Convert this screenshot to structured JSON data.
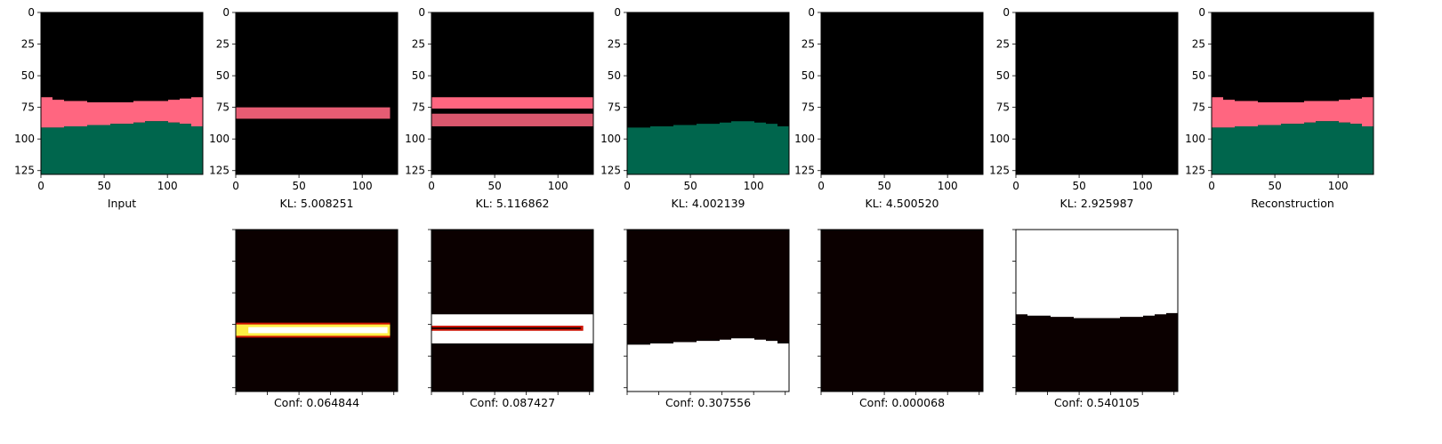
{
  "chart_data": {
    "type": "heatmap",
    "colors": {
      "pink": "#ff6680",
      "green": "#00664d",
      "black": "#000000",
      "heat_dark": "#0b0000",
      "heat_red": "#cc1100",
      "heat_yellow": "#ffee44",
      "heat_white": "#ffffff"
    },
    "axis": {
      "xticks": [
        0,
        50,
        100
      ],
      "yticks": [
        0,
        25,
        50,
        75,
        100,
        125
      ],
      "xlim": [
        0,
        128
      ],
      "ylim": [
        128,
        0
      ]
    },
    "top_row": [
      {
        "label": "Input",
        "content": "full",
        "top_profile": [
          67,
          69,
          70,
          70,
          71,
          71,
          71,
          71,
          70,
          70,
          70,
          69,
          68,
          67
        ],
        "green_profile": [
          91,
          91,
          90,
          90,
          89,
          89,
          88,
          88,
          87,
          86,
          86,
          87,
          88,
          90
        ]
      },
      {
        "label": "KL: 5.008251",
        "content": "band_thin",
        "band": {
          "x": [
            0,
            122
          ],
          "y": [
            75,
            84
          ]
        }
      },
      {
        "label": "KL: 5.116862",
        "content": "band_double",
        "upper": {
          "x": [
            0,
            128
          ],
          "y": [
            67,
            76
          ]
        },
        "lower": {
          "x": [
            0,
            128
          ],
          "y": [
            80,
            90
          ]
        }
      },
      {
        "label": "KL: 4.002139",
        "content": "green_only",
        "green_profile": [
          91,
          91,
          90,
          90,
          89,
          89,
          88,
          88,
          87,
          86,
          86,
          87,
          88,
          90
        ]
      },
      {
        "label": "KL: 4.500520",
        "content": "empty"
      },
      {
        "label": "KL: 2.925987",
        "content": "empty"
      },
      {
        "label": "Reconstruction",
        "content": "full",
        "top_profile": [
          67,
          69,
          70,
          70,
          71,
          71,
          71,
          71,
          70,
          70,
          70,
          69,
          68,
          67
        ],
        "green_profile": [
          91,
          91,
          90,
          90,
          89,
          89,
          88,
          88,
          87,
          86,
          86,
          87,
          88,
          90
        ]
      }
    ],
    "bottom_row": [
      {
        "label": "Conf: 0.064844",
        "content": "heat_thin",
        "band": {
          "x": [
            0,
            122
          ],
          "y": [
            75,
            84
          ]
        }
      },
      {
        "label": "Conf: 0.087427",
        "content": "heat_double",
        "upper": {
          "x": [
            0,
            128
          ],
          "y": [
            67,
            76
          ]
        },
        "lower": {
          "x": [
            0,
            128
          ],
          "y": [
            80,
            90
          ]
        }
      },
      {
        "label": "Conf: 0.307556",
        "content": "white_below",
        "profile": [
          91,
          91,
          90,
          90,
          89,
          89,
          88,
          88,
          87,
          86,
          86,
          87,
          88,
          90
        ]
      },
      {
        "label": "Conf: 0.000068",
        "content": "dark"
      },
      {
        "label": "Conf: 0.540105",
        "content": "white_above",
        "profile": [
          67,
          68,
          68,
          69,
          69,
          70,
          70,
          70,
          70,
          69,
          69,
          68,
          67,
          66
        ]
      }
    ]
  }
}
